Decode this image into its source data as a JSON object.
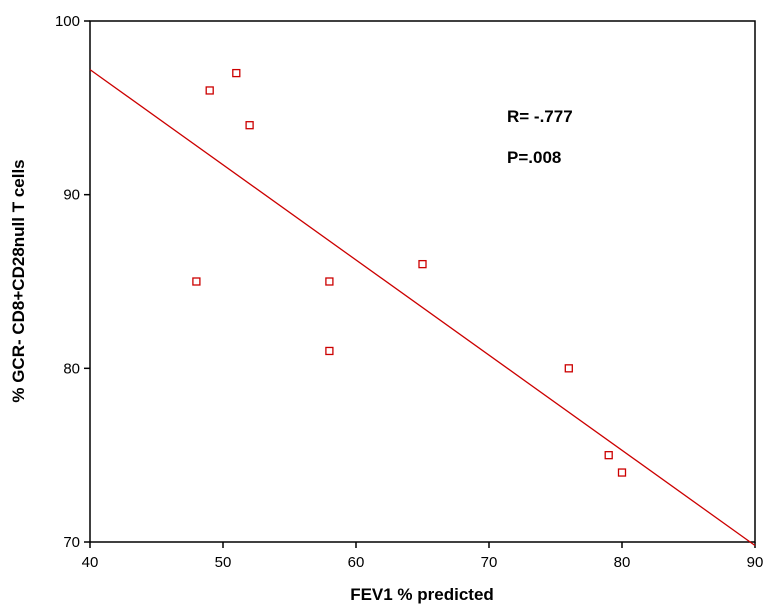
{
  "chart_data": {
    "type": "scatter",
    "title": "",
    "xlabel": "FEV1 % predicted",
    "ylabel": "% GCR- CD8+CD28null T cells",
    "xlim": [
      40,
      90
    ],
    "ylim": [
      70,
      100
    ],
    "x_ticks": [
      "40",
      "50",
      "60",
      "70",
      "80",
      "90"
    ],
    "y_ticks": [
      "70",
      "80",
      "90",
      "100"
    ],
    "grid": false,
    "legend": "none",
    "points": [
      {
        "x": 48,
        "y": 85
      },
      {
        "x": 49,
        "y": 96
      },
      {
        "x": 51,
        "y": 97
      },
      {
        "x": 52,
        "y": 94
      },
      {
        "x": 58,
        "y": 85
      },
      {
        "x": 58,
        "y": 81
      },
      {
        "x": 65,
        "y": 86
      },
      {
        "x": 76,
        "y": 80
      },
      {
        "x": 79,
        "y": 75
      },
      {
        "x": 80,
        "y": 74
      }
    ],
    "fit_line": {
      "x": [
        40,
        90
      ],
      "y": [
        97.2,
        69.8
      ]
    },
    "annotations": [
      "R= -.777",
      "P=.008"
    ],
    "colors": {
      "marker": "#cc0000",
      "fit_line": "#cc0000",
      "axes": "#000000"
    }
  }
}
